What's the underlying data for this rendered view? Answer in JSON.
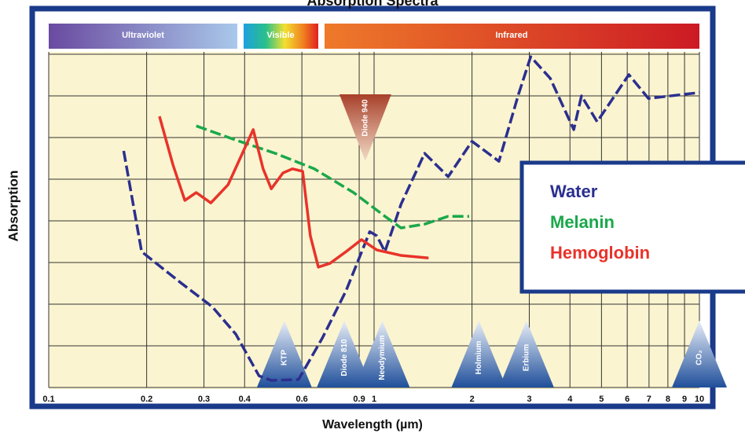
{
  "chart_data": {
    "type": "line",
    "title": "Absorption Spectra",
    "x_label": "Wavelength (µm)",
    "y_label": "Absorption",
    "xlog": true,
    "xlim": [
      0.1,
      10
    ],
    "xticks": [
      0.1,
      0.2,
      0.3,
      0.4,
      0.6,
      0.9,
      1,
      2,
      3,
      4,
      5,
      6,
      7,
      8,
      9,
      10
    ],
    "ylim": [
      0,
      8
    ],
    "grid": true,
    "legend": "right",
    "bands": [
      "Ultraviolet",
      "Visible",
      "Infrared"
    ],
    "lasers": [
      {
        "label": "KTP",
        "x": 0.53
      },
      {
        "label": "Diode 810",
        "x": 0.81
      },
      {
        "label": "Neodymium",
        "x": 1.06
      },
      {
        "label": "Holmium",
        "x": 2.1
      },
      {
        "label": "Erbium",
        "x": 2.94
      },
      {
        "label": "CO₂",
        "x": 10
      },
      {
        "label": "Diode 940",
        "x": 0.94,
        "inverted": true
      }
    ],
    "series": [
      {
        "name": "Water",
        "color": "#2b2f8f",
        "dash": true,
        "x": [
          0.17,
          0.193,
          0.255,
          0.318,
          0.376,
          0.443,
          0.483,
          0.586,
          0.694,
          0.82,
          0.97,
          1.02,
          1.08,
          1.21,
          1.43,
          1.69,
          2.0,
          2.42,
          2.78,
          3.03,
          3.48,
          4.11,
          4.34,
          4.85,
          6.07,
          6.97,
          10
        ],
        "values": [
          5.68,
          3.26,
          2.51,
          1.94,
          1.28,
          0.28,
          0.17,
          0.19,
          1.19,
          2.32,
          3.74,
          3.64,
          3.26,
          4.4,
          5.62,
          5.06,
          5.91,
          5.43,
          7.04,
          7.94,
          7.42,
          6.19,
          7.0,
          6.38,
          7.51,
          6.94,
          7.08
        ]
      },
      {
        "name": "Melanin",
        "color": "#1aa84a",
        "dash": true,
        "x": [
          0.284,
          0.376,
          0.497,
          0.655,
          0.865,
          1.08,
          1.21,
          1.43,
          1.69,
          1.96
        ],
        "values": [
          6.28,
          5.94,
          5.62,
          5.25,
          4.68,
          4.11,
          3.83,
          3.92,
          4.11,
          4.11
        ]
      },
      {
        "name": "Hemoglobin",
        "color": "#e8332a",
        "dash": false,
        "x": [
          0.219,
          0.241,
          0.262,
          0.284,
          0.315,
          0.356,
          0.425,
          0.456,
          0.483,
          0.525,
          0.561,
          0.603,
          0.637,
          0.674,
          0.732,
          0.82,
          0.915,
          1.02,
          1.21,
          1.47
        ],
        "values": [
          6.51,
          5.34,
          4.49,
          4.68,
          4.43,
          4.87,
          6.19,
          5.25,
          4.77,
          5.15,
          5.25,
          5.19,
          3.64,
          2.89,
          2.98,
          3.26,
          3.55,
          3.3,
          3.17,
          3.11
        ]
      }
    ]
  }
}
